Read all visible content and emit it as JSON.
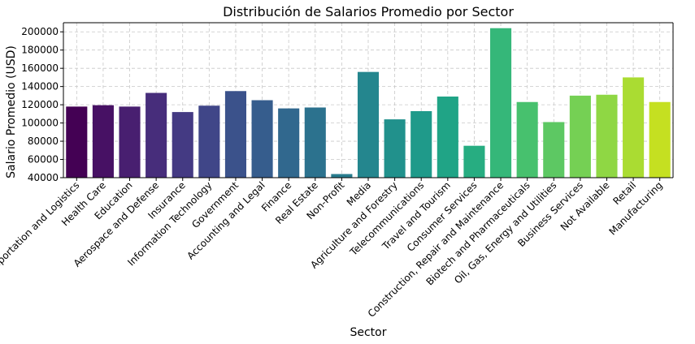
{
  "chart_data": {
    "type": "bar",
    "title": "Distribución de Salarios Promedio por Sector",
    "xlabel": "Sector",
    "ylabel": "Salario Promedio (USD)",
    "ylim": [
      40000,
      210000
    ],
    "yticks": [
      40000,
      60000,
      80000,
      100000,
      120000,
      140000,
      160000,
      180000,
      200000
    ],
    "ytick_labels": [
      "40000",
      "60000",
      "80000",
      "100000",
      "120000",
      "140000",
      "160000",
      "180000",
      "200000"
    ],
    "grid": true,
    "palette": "viridis",
    "categories": [
      "Transportation and Logistics",
      "Health Care",
      "Education",
      "Aerospace and Defense",
      "Insurance",
      "Information Technology",
      "Government",
      "Accounting and Legal",
      "Finance",
      "Real Estate",
      "Non-Profit",
      "Media",
      "Agriculture and Forestry",
      "Telecommunications",
      "Travel and Tourism",
      "Consumer Services",
      "Construction, Repair and Maintenance",
      "Biotech and Pharmaceuticals",
      "Oil, Gas, Energy and Utilities",
      "Business Services",
      "Not Available",
      "Retail",
      "Manufacturing"
    ],
    "values": [
      118000,
      119500,
      118000,
      133000,
      112000,
      119000,
      135000,
      125000,
      116000,
      117000,
      44000,
      156000,
      104000,
      113000,
      129000,
      75000,
      204000,
      123000,
      101000,
      130000,
      131000,
      150000,
      123000
    ],
    "colors": [
      "#440154",
      "#471164",
      "#481f70",
      "#472d7b",
      "#443a83",
      "#404688",
      "#3b528b",
      "#365d8d",
      "#31688e",
      "#2c728e",
      "#287c8e",
      "#24868e",
      "#21918c",
      "#1f9a8a",
      "#20a486",
      "#27ad81",
      "#35b779",
      "#47c16e",
      "#5dc863",
      "#75d054",
      "#8fd744",
      "#aadc32",
      "#c5e021"
    ]
  }
}
